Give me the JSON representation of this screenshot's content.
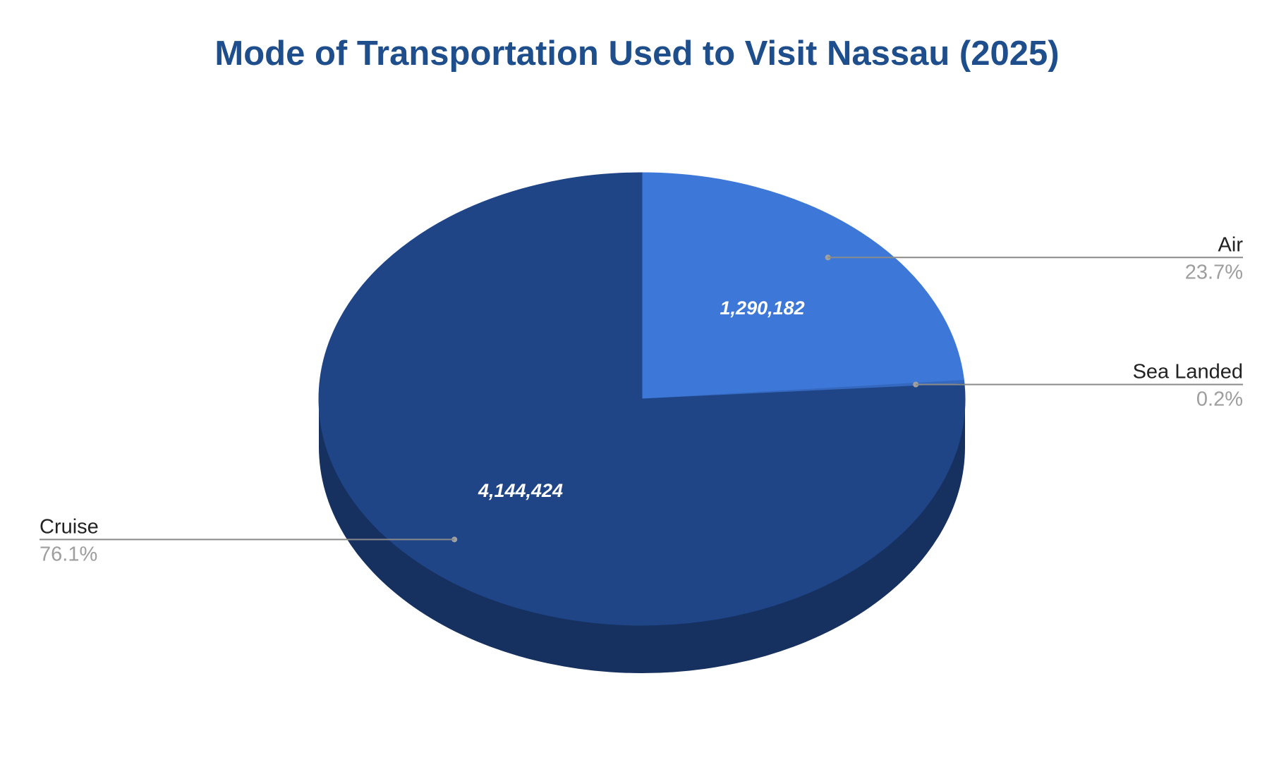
{
  "chart_data": {
    "type": "pie",
    "style": "3d",
    "title": "Mode of Transportation Used to Visit Nassau (2025)",
    "slices": [
      {
        "label": "Air",
        "value": 1290182,
        "value_label": "1,290,182",
        "percent_label": "23.7%",
        "color": "#3d78d8",
        "side_color": "#2c5aa8"
      },
      {
        "label": "Sea Landed",
        "value": 13000,
        "value_label": "",
        "percent_label": "0.2%",
        "color": "#3569bf",
        "side_color": "#25508f"
      },
      {
        "label": "Cruise",
        "value": 4144424,
        "value_label": "4,144,424",
        "percent_label": "76.1%",
        "color": "#1f4587",
        "side_color": "#16315f"
      }
    ],
    "start_angle_deg": 0,
    "direction": "clockwise"
  },
  "colors": {
    "title": "#1f4e8c",
    "callout_name": "#222222",
    "callout_percent": "#9e9e9e",
    "leader_line": "#8a8a8a",
    "background": "#ffffff"
  }
}
